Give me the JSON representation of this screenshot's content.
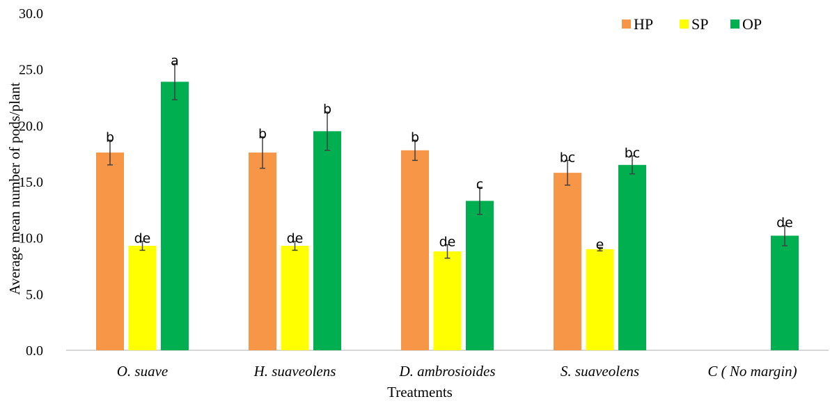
{
  "chart_data": {
    "type": "bar",
    "title": "",
    "xlabel": "Treatments",
    "ylabel": "Average mean number of pods/plant",
    "ylim": [
      0,
      30
    ],
    "yticks": [
      "0.0",
      "5.0",
      "10.0",
      "15.0",
      "20.0",
      "25.0",
      "30.0"
    ],
    "legend_position": "top-right",
    "grid": false,
    "categories": [
      "O. suave",
      "H. suaveolens",
      "D. ambrosioides",
      "S. suaveolens",
      "C ( No margin)"
    ],
    "series": [
      {
        "name": "HP",
        "color": "#F79646",
        "values": [
          17.6,
          17.6,
          17.8,
          15.8,
          null
        ],
        "errors": [
          1.1,
          1.4,
          0.9,
          1.1,
          null
        ],
        "labels": [
          "b",
          "b",
          "b",
          "bc",
          ""
        ]
      },
      {
        "name": "SP",
        "color": "#FFFF00",
        "values": [
          9.3,
          9.3,
          8.8,
          9.0,
          null
        ],
        "errors": [
          0.4,
          0.4,
          0.6,
          0.15,
          null
        ],
        "labels": [
          "de",
          "de",
          "de",
          "e",
          ""
        ]
      },
      {
        "name": "OP",
        "color": "#00B050",
        "values": [
          23.9,
          19.5,
          13.3,
          16.5,
          10.2
        ],
        "errors": [
          1.6,
          1.7,
          1.2,
          0.8,
          0.9
        ],
        "labels": [
          "a",
          "b",
          "c",
          "bc",
          "de"
        ]
      }
    ]
  }
}
